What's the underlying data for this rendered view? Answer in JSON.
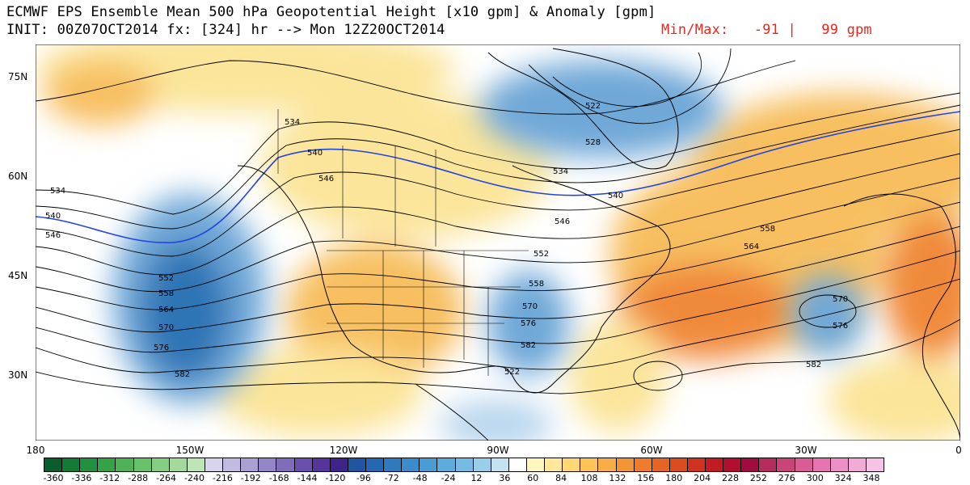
{
  "header": {
    "title_line1": "ECMWF EPS Ensemble Mean 500 hPa Geopotential Height [x10 gpm] & Anomaly [gpm]",
    "title_line2": "INIT: 00Z07OCT2014 fx: [324] hr --> Mon 12Z20OCT2014",
    "minmax": "Min/Max:   -91 |   99 gpm"
  },
  "map": {
    "lat_labels": [
      "75N",
      "60N",
      "45N",
      "30N"
    ],
    "lon_labels": [
      "180",
      "150W",
      "120W",
      "90W",
      "60W",
      "30W",
      "0"
    ],
    "contour_labels": [
      "534",
      "540",
      "546",
      "552",
      "558",
      "564",
      "570",
      "576",
      "582",
      "522",
      "528"
    ],
    "colors": {
      "neg_dark": "#2f74b5",
      "neg_mid": "#6fa8d8",
      "neg_light": "#b7d5ee",
      "pos_light": "#fbe59a",
      "pos_mid": "#f7bf60",
      "pos_dark": "#f08a3a",
      "highlight_line": "#2244dd",
      "contour": "#000000"
    }
  },
  "colorbar": {
    "colors": [
      "#0b5e2b",
      "#157a36",
      "#23903f",
      "#35a248",
      "#4eb356",
      "#68c26a",
      "#84ce81",
      "#a1da9b",
      "#bde6b7",
      "#d8d4ec",
      "#c3bae1",
      "#ab9fd4",
      "#9485c6",
      "#7f6cbb",
      "#6a4fac",
      "#553599",
      "#3f2388",
      "#1d57a4",
      "#2467b2",
      "#2f79bf",
      "#3c8bcb",
      "#4a9cd4",
      "#5cacdc",
      "#76bbe3",
      "#9acde9",
      "#c6e2f0",
      "#ffffff",
      "#fff6c0",
      "#ffe89a",
      "#ffd873",
      "#fcc455",
      "#f8ad45",
      "#f39436",
      "#ee7c2c",
      "#e66426",
      "#dc4b22",
      "#d0321f",
      "#c21c23",
      "#b10f2f",
      "#a00c3e",
      "#b52d5d",
      "#c94479",
      "#da5c95",
      "#e574b0",
      "#ee8fc5",
      "#f3aad7",
      "#f6c3e4"
    ],
    "tick_labels": [
      "-360",
      "-336",
      "-312",
      "-288",
      "-264",
      "-240",
      "-216",
      "-192",
      "-168",
      "-144",
      "-120",
      "-96",
      "-72",
      "-48",
      "-24",
      "12",
      "36",
      "60",
      "84",
      "108",
      "132",
      "156",
      "180",
      "204",
      "228",
      "252",
      "276",
      "300",
      "324",
      "348"
    ]
  }
}
